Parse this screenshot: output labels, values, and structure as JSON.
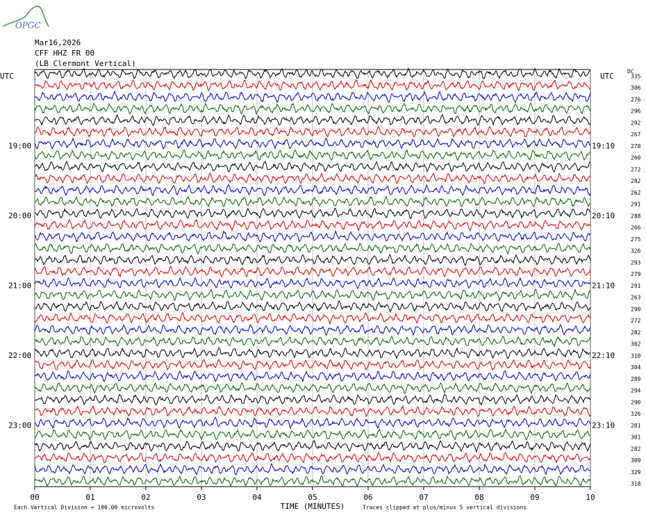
{
  "header": {
    "logo": "OPGC",
    "date": "Mar16,2026",
    "station": "CFF HHZ FR 00",
    "location": "(LB  Clermont Vertical)"
  },
  "chart_data": {
    "type": "helicorder",
    "xlabel": "TIME (MINUTES)",
    "xlim": [
      0,
      10
    ],
    "xticks": [
      {
        "value": 0,
        "label": "00"
      },
      {
        "value": 1,
        "label": "01"
      },
      {
        "value": 2,
        "label": "02"
      },
      {
        "value": 3,
        "label": "03"
      },
      {
        "value": 4,
        "label": "04"
      },
      {
        "value": 5,
        "label": "05"
      },
      {
        "value": 6,
        "label": "06"
      },
      {
        "value": 7,
        "label": "07"
      },
      {
        "value": 8,
        "label": "08"
      },
      {
        "value": 9,
        "label": "09"
      },
      {
        "value": 10,
        "label": "10"
      }
    ],
    "left_labels": [
      "UTC",
      null,
      null,
      null,
      null,
      null,
      "19:00",
      null,
      null,
      null,
      null,
      null,
      "20:00",
      null,
      null,
      null,
      null,
      null,
      "21:00",
      null,
      null,
      null,
      null,
      null,
      "22:00",
      null,
      null,
      null,
      null,
      null,
      "23:00",
      null,
      null,
      null,
      null,
      null
    ],
    "right_labels": [
      "UTC",
      null,
      null,
      null,
      null,
      null,
      "19:10",
      null,
      null,
      null,
      null,
      null,
      "20:10",
      null,
      null,
      null,
      null,
      null,
      "21:10",
      null,
      null,
      null,
      null,
      null,
      "22:10",
      null,
      null,
      null,
      null,
      null,
      "23:10",
      null,
      null,
      null,
      null,
      null
    ],
    "dc_label": "DC",
    "dc_offsets": [
      335,
      306,
      276,
      296,
      292,
      267,
      278,
      260,
      272,
      282,
      262,
      291,
      288,
      266,
      275,
      326,
      293,
      279,
      291,
      263,
      290,
      272,
      282,
      302,
      310,
      304,
      289,
      294,
      290,
      326,
      281,
      301,
      282,
      309,
      329,
      318
    ],
    "trace_colors": [
      "#000000",
      "#e00000",
      "#0000d0",
      "#006600"
    ],
    "grid": true,
    "scale_note": "Each Vertical Division =  100.00 microvolts",
    "clip_note": "Traces clipped at plus/minus 5 vertical divisions"
  }
}
